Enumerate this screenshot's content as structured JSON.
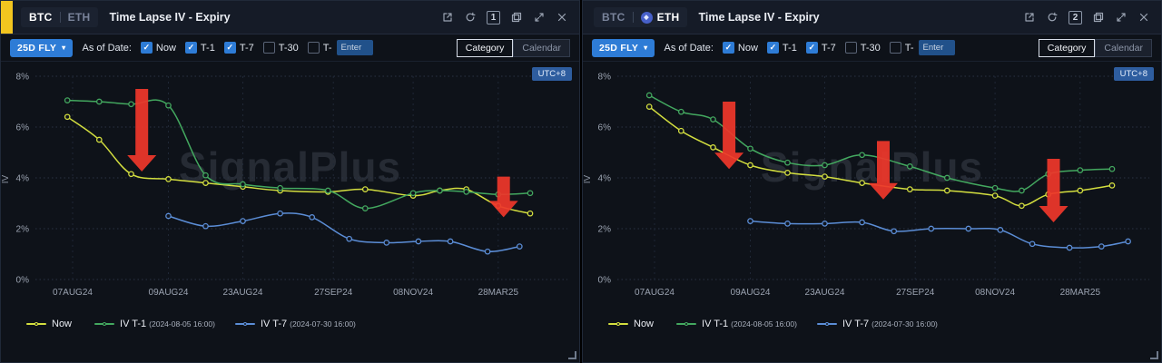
{
  "colors": {
    "accent_blue": "#2e7cd6",
    "arrow_red": "#ee372b",
    "line_yellow": "#d3de3f",
    "line_green": "#43a85f",
    "line_blue": "#5b8dd6",
    "active_tab_accent": "#f2c51f",
    "timezone_badge_bg": "#2e5d9f"
  },
  "panels": [
    {
      "coin_toggle": {
        "btc": "BTC",
        "eth": "ETH",
        "active": "BTC"
      },
      "title": "Time Lapse IV - Expiry",
      "window_badge": "1",
      "toolbar": {
        "strategy": "25D FLY",
        "caret": "▾",
        "as_of_label": "As of Date:",
        "checkboxes": [
          {
            "label": "Now",
            "checked": true
          },
          {
            "label": "T-1",
            "checked": true
          },
          {
            "label": "T-7",
            "checked": true
          },
          {
            "label": "T-30",
            "checked": false
          },
          {
            "label": "T-",
            "checked": false
          }
        ],
        "custom_day_placeholder": "Enter",
        "view_options": {
          "category": "Category",
          "calendar": "Calendar",
          "active": "Category"
        }
      },
      "timezone": "UTC+8",
      "watermark": "SignalPlus",
      "legend": [
        {
          "name": "Now",
          "timestamp": "",
          "color": "#d3de3f"
        },
        {
          "name": "IV T-1",
          "timestamp": "(2024-08-05 16:00)",
          "color": "#43a85f"
        },
        {
          "name": "IV T-7",
          "timestamp": "(2024-07-30 16:00)",
          "color": "#5b8dd6"
        }
      ]
    },
    {
      "coin_toggle": {
        "btc": "BTC",
        "eth": "ETH",
        "active": "ETH"
      },
      "title": "Time Lapse IV - Expiry",
      "window_badge": "2",
      "toolbar": {
        "strategy": "25D FLY",
        "caret": "▾",
        "as_of_label": "As of Date:",
        "checkboxes": [
          {
            "label": "Now",
            "checked": true
          },
          {
            "label": "T-1",
            "checked": true
          },
          {
            "label": "T-7",
            "checked": true
          },
          {
            "label": "T-30",
            "checked": false
          },
          {
            "label": "T-",
            "checked": false
          }
        ],
        "custom_day_placeholder": "Enter",
        "view_options": {
          "category": "Category",
          "calendar": "Calendar",
          "active": "Category"
        }
      },
      "timezone": "UTC+8",
      "watermark": "SignalPlus",
      "legend": [
        {
          "name": "Now",
          "timestamp": "",
          "color": "#d3de3f"
        },
        {
          "name": "IV T-1",
          "timestamp": "(2024-08-05 16:00)",
          "color": "#43a85f"
        },
        {
          "name": "IV T-7",
          "timestamp": "(2024-07-30 16:00)",
          "color": "#5b8dd6"
        }
      ]
    }
  ],
  "chart_data": [
    {
      "type": "line",
      "coin": "BTC",
      "title": "Time Lapse IV - Expiry (BTC, 25D FLY)",
      "xlabel": "Expiry",
      "ylabel": "IV",
      "ylim": [
        0,
        8
      ],
      "yticks": [
        0,
        2,
        4,
        6,
        8
      ],
      "ytick_suffix": "%",
      "xlim": [
        0,
        100
      ],
      "grid": true,
      "legend_position": "bottom",
      "arrow_color": "#ee372b",
      "xticks": [
        {
          "label": "07AUG24",
          "x": 7
        },
        {
          "label": "09AUG24",
          "x": 25
        },
        {
          "label": "23AUG24",
          "x": 39
        },
        {
          "label": "27SEP24",
          "x": 56
        },
        {
          "label": "08NOV24",
          "x": 71
        },
        {
          "label": "28MAR25",
          "x": 87
        }
      ],
      "series": [
        {
          "name": "Now",
          "color": "#d3de3f",
          "x": [
            6,
            12,
            18,
            25,
            32,
            39,
            46,
            55,
            62,
            71,
            76,
            81,
            87,
            93
          ],
          "y": [
            6.4,
            5.5,
            4.15,
            3.95,
            3.8,
            3.65,
            3.5,
            3.45,
            3.55,
            3.3,
            3.5,
            3.55,
            2.9,
            2.6
          ]
        },
        {
          "name": "IV T-1",
          "timestamp": "2024-08-05 16:00",
          "color": "#43a85f",
          "x": [
            6,
            12,
            18,
            25,
            32,
            39,
            46,
            55,
            62,
            71,
            76,
            81,
            87,
            93
          ],
          "y": [
            7.05,
            7.0,
            6.9,
            6.85,
            4.1,
            3.75,
            3.6,
            3.5,
            2.8,
            3.4,
            3.5,
            3.45,
            3.35,
            3.4
          ]
        },
        {
          "name": "IV T-7",
          "timestamp": "2024-07-30 16:00",
          "color": "#5b8dd6",
          "x": [
            25,
            32,
            39,
            46,
            52,
            59,
            66,
            72,
            78,
            85,
            91
          ],
          "y": [
            2.5,
            2.1,
            2.3,
            2.6,
            2.45,
            1.6,
            1.45,
            1.5,
            1.5,
            1.1,
            1.3
          ]
        }
      ],
      "annotations": [
        {
          "type": "arrow-down",
          "x": 20,
          "y_from": 7.5,
          "y_to": 4.25
        },
        {
          "type": "arrow-down",
          "x": 88,
          "y_from": 4.05,
          "y_to": 2.45
        }
      ]
    },
    {
      "type": "line",
      "coin": "ETH",
      "title": "Time Lapse IV - Expiry (ETH, 25D FLY)",
      "xlabel": "Expiry",
      "ylabel": "IV",
      "ylim": [
        0,
        8
      ],
      "yticks": [
        0,
        2,
        4,
        6,
        8
      ],
      "ytick_suffix": "%",
      "xlim": [
        0,
        100
      ],
      "grid": true,
      "legend_position": "bottom",
      "arrow_color": "#ee372b",
      "xticks": [
        {
          "label": "07AUG24",
          "x": 7
        },
        {
          "label": "09AUG24",
          "x": 25
        },
        {
          "label": "23AUG24",
          "x": 39
        },
        {
          "label": "27SEP24",
          "x": 56
        },
        {
          "label": "08NOV24",
          "x": 71
        },
        {
          "label": "28MAR25",
          "x": 87
        }
      ],
      "series": [
        {
          "name": "Now",
          "color": "#d3de3f",
          "x": [
            6,
            12,
            18,
            25,
            32,
            39,
            46,
            55,
            62,
            71,
            76,
            81,
            87,
            93
          ],
          "y": [
            6.8,
            5.85,
            5.2,
            4.5,
            4.2,
            4.05,
            3.8,
            3.55,
            3.5,
            3.3,
            2.9,
            3.35,
            3.5,
            3.7
          ]
        },
        {
          "name": "IV T-1",
          "timestamp": "2024-08-05 16:00",
          "color": "#43a85f",
          "x": [
            6,
            12,
            18,
            25,
            32,
            39,
            46,
            55,
            62,
            71,
            76,
            81,
            87,
            93
          ],
          "y": [
            7.25,
            6.6,
            6.3,
            5.15,
            4.6,
            4.5,
            4.9,
            4.45,
            4.0,
            3.6,
            3.5,
            4.15,
            4.3,
            4.35
          ]
        },
        {
          "name": "IV T-7",
          "timestamp": "2024-07-30 16:00",
          "color": "#5b8dd6",
          "x": [
            25,
            32,
            39,
            46,
            52,
            59,
            66,
            72,
            78,
            85,
            91,
            96
          ],
          "y": [
            2.3,
            2.2,
            2.2,
            2.25,
            1.9,
            2.0,
            2.0,
            1.95,
            1.4,
            1.25,
            1.3,
            1.5
          ]
        }
      ],
      "annotations": [
        {
          "type": "arrow-down",
          "x": 21,
          "y_from": 7.0,
          "y_to": 4.35
        },
        {
          "type": "arrow-down",
          "x": 50,
          "y_from": 5.45,
          "y_to": 3.15
        },
        {
          "type": "arrow-down",
          "x": 82,
          "y_from": 4.75,
          "y_to": 2.25
        }
      ]
    }
  ]
}
